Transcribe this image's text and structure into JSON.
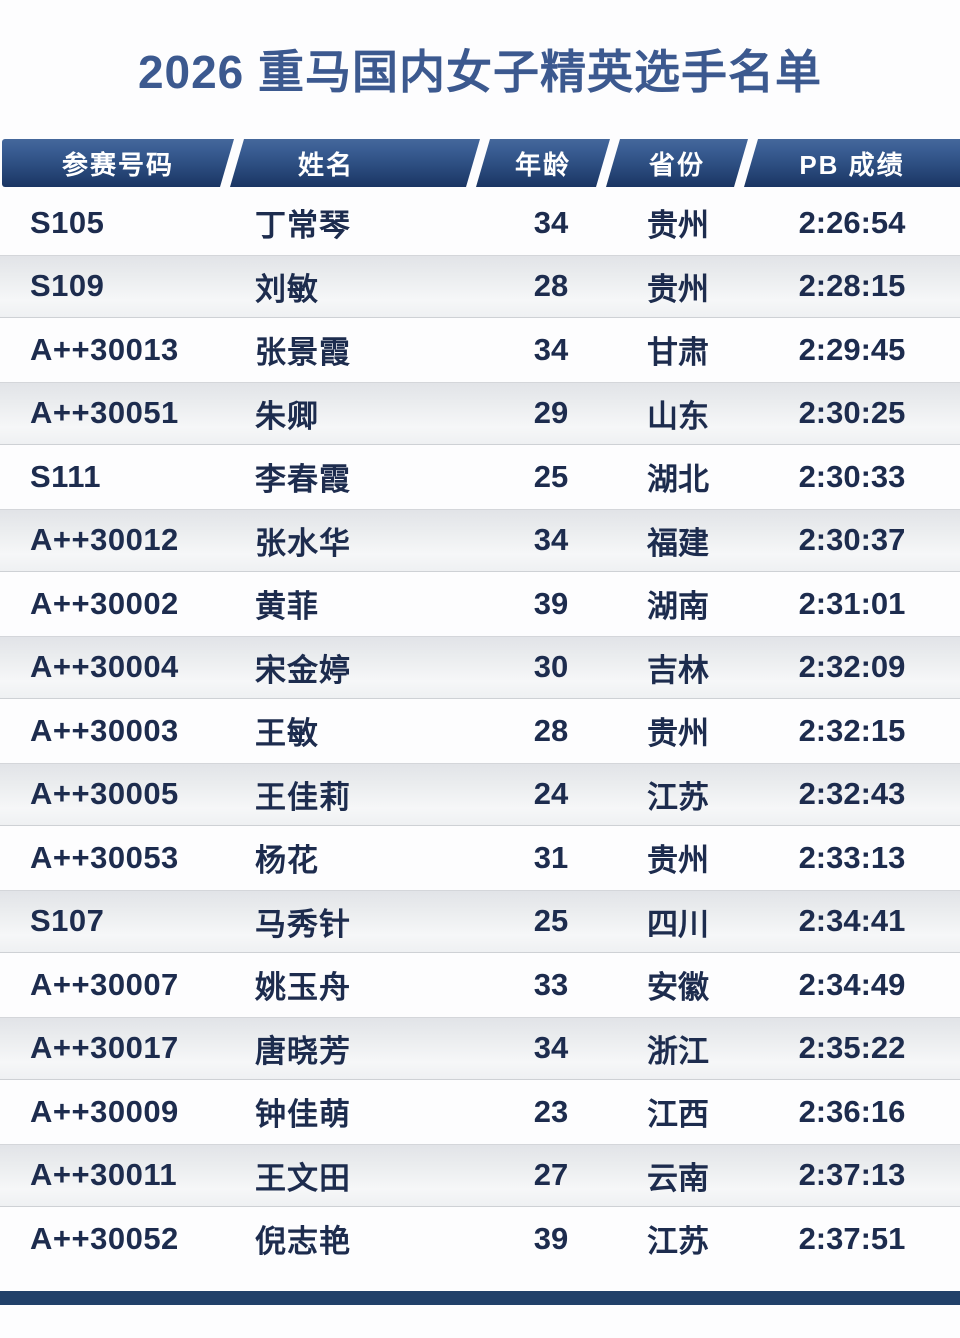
{
  "page": {
    "title": "2026 重马国内女子精英选手名单"
  },
  "table": {
    "columns": [
      {
        "label": "参赛号码"
      },
      {
        "label": "姓名"
      },
      {
        "label": "年龄"
      },
      {
        "label": "省份"
      },
      {
        "label": "PB 成绩"
      }
    ],
    "rows": [
      {
        "bib": "S105",
        "name": "丁常琴",
        "age": "34",
        "province": "贵州",
        "pb": "2:26:54"
      },
      {
        "bib": "S109",
        "name": "刘敏",
        "age": "28",
        "province": "贵州",
        "pb": "2:28:15"
      },
      {
        "bib": "A++30013",
        "name": "张景霞",
        "age": "34",
        "province": "甘肃",
        "pb": "2:29:45"
      },
      {
        "bib": "A++30051",
        "name": "朱卿",
        "age": "29",
        "province": "山东",
        "pb": "2:30:25"
      },
      {
        "bib": "S111",
        "name": "李春霞",
        "age": "25",
        "province": "湖北",
        "pb": "2:30:33"
      },
      {
        "bib": "A++30012",
        "name": "张水华",
        "age": "34",
        "province": "福建",
        "pb": "2:30:37"
      },
      {
        "bib": "A++30002",
        "name": "黄菲",
        "age": "39",
        "province": "湖南",
        "pb": "2:31:01"
      },
      {
        "bib": "A++30004",
        "name": "宋金婷",
        "age": "30",
        "province": "吉林",
        "pb": "2:32:09"
      },
      {
        "bib": "A++30003",
        "name": "王敏",
        "age": "28",
        "province": "贵州",
        "pb": "2:32:15"
      },
      {
        "bib": "A++30005",
        "name": "王佳莉",
        "age": "24",
        "province": "江苏",
        "pb": "2:32:43"
      },
      {
        "bib": "A++30053",
        "name": "杨花",
        "age": "31",
        "province": "贵州",
        "pb": "2:33:13"
      },
      {
        "bib": "S107",
        "name": "马秀针",
        "age": "25",
        "province": "四川",
        "pb": "2:34:41"
      },
      {
        "bib": "A++30007",
        "name": "姚玉舟",
        "age": "33",
        "province": "安徽",
        "pb": "2:34:49"
      },
      {
        "bib": "A++30017",
        "name": "唐晓芳",
        "age": "34",
        "province": "浙江",
        "pb": "2:35:22"
      },
      {
        "bib": "A++30009",
        "name": "钟佳萌",
        "age": "23",
        "province": "江西",
        "pb": "2:36:16"
      },
      {
        "bib": "A++30011",
        "name": "王文田",
        "age": "27",
        "province": "云南",
        "pb": "2:37:13"
      },
      {
        "bib": "A++30052",
        "name": "倪志艳",
        "age": "39",
        "province": "江苏",
        "pb": "2:37:51"
      }
    ]
  },
  "colors": {
    "title_text": "#3c598f",
    "header_bg_top": "#45689b",
    "header_bg_bottom": "#1a3563",
    "header_text": "#ffffff",
    "cell_text": "#1d2c4e",
    "row_alt_bg": "#e8eaed",
    "footer_bar": "#214069"
  }
}
